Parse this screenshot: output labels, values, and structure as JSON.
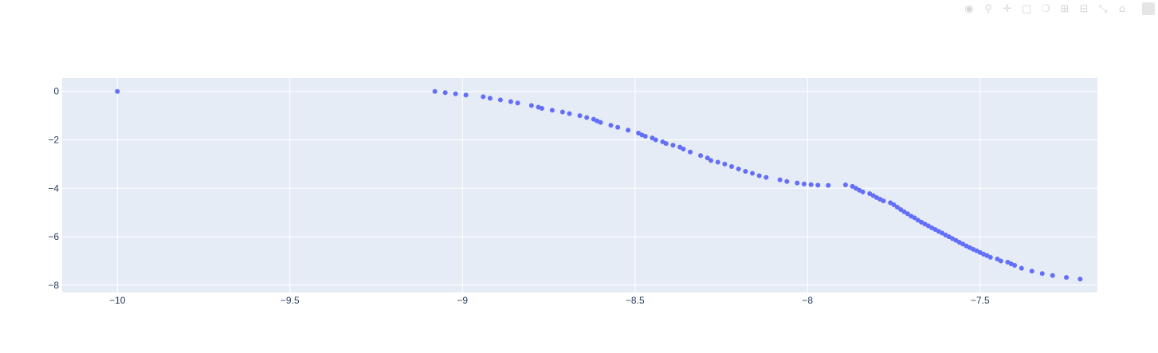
{
  "chart_data": {
    "type": "scatter",
    "title": "",
    "xlabel": "",
    "ylabel": "",
    "xlim": [
      -10.16,
      -7.16
    ],
    "ylim": [
      -8.3,
      0.55
    ],
    "xticks": [
      -10,
      -9.5,
      -9,
      -8.5,
      -8,
      -7.5
    ],
    "xtick_labels": [
      "−10",
      "−9.5",
      "−9",
      "−8.5",
      "−8",
      "−7.5"
    ],
    "yticks": [
      0,
      -2,
      -4,
      -6,
      -8
    ],
    "ytick_labels": [
      "0",
      "−2",
      "−4",
      "−6",
      "−8"
    ],
    "grid": true,
    "marker_color": "#636efa",
    "plot_bg": "#e5ecf6",
    "series": [
      {
        "x": [
          -10.0,
          -9.08,
          -9.05,
          -9.02,
          -8.99,
          -8.94,
          -8.92,
          -8.89,
          -8.86,
          -8.84,
          -8.8,
          -8.78,
          -8.77,
          -8.74,
          -8.71,
          -8.69,
          -8.66,
          -8.64,
          -8.62,
          -8.61,
          -8.6,
          -8.57,
          -8.55,
          -8.52,
          -8.49,
          -8.48,
          -8.47,
          -8.45,
          -8.44,
          -8.42,
          -8.41,
          -8.39,
          -8.37,
          -8.36,
          -8.34,
          -8.31,
          -8.29,
          -8.28,
          -8.26,
          -8.24,
          -8.22,
          -8.2,
          -8.18,
          -8.16,
          -8.14,
          -8.12,
          -8.08,
          -8.06,
          -8.03,
          -8.01,
          -7.99,
          -7.97,
          -7.94,
          -7.89,
          -7.87,
          -7.86,
          -7.85,
          -7.84,
          -7.82,
          -7.81,
          -7.8,
          -7.79,
          -7.78,
          -7.76,
          -7.75,
          -7.74,
          -7.73,
          -7.72,
          -7.71,
          -7.7,
          -7.69,
          -7.68,
          -7.67,
          -7.66,
          -7.65,
          -7.64,
          -7.63,
          -7.62,
          -7.61,
          -7.6,
          -7.59,
          -7.58,
          -7.57,
          -7.56,
          -7.55,
          -7.54,
          -7.53,
          -7.52,
          -7.51,
          -7.5,
          -7.49,
          -7.48,
          -7.47,
          -7.45,
          -7.44,
          -7.42,
          -7.41,
          -7.4,
          -7.38,
          -7.35,
          -7.32,
          -7.29,
          -7.25,
          -7.21
        ],
        "y": [
          0.0,
          0.0,
          -0.05,
          -0.1,
          -0.15,
          -0.22,
          -0.28,
          -0.35,
          -0.42,
          -0.48,
          -0.58,
          -0.65,
          -0.7,
          -0.78,
          -0.85,
          -0.92,
          -1.0,
          -1.08,
          -1.15,
          -1.22,
          -1.28,
          -1.4,
          -1.48,
          -1.6,
          -1.72,
          -1.8,
          -1.85,
          -1.92,
          -2.0,
          -2.08,
          -2.15,
          -2.22,
          -2.3,
          -2.38,
          -2.5,
          -2.65,
          -2.75,
          -2.85,
          -2.92,
          -3.0,
          -3.1,
          -3.2,
          -3.3,
          -3.38,
          -3.48,
          -3.55,
          -3.65,
          -3.72,
          -3.78,
          -3.82,
          -3.85,
          -3.87,
          -3.88,
          -3.86,
          -3.92,
          -4.0,
          -4.08,
          -4.15,
          -4.22,
          -4.3,
          -4.38,
          -4.45,
          -4.52,
          -4.6,
          -4.68,
          -4.78,
          -4.88,
          -4.97,
          -5.05,
          -5.15,
          -5.22,
          -5.32,
          -5.4,
          -5.48,
          -5.55,
          -5.63,
          -5.7,
          -5.78,
          -5.85,
          -5.93,
          -6.0,
          -6.08,
          -6.15,
          -6.23,
          -6.3,
          -6.38,
          -6.45,
          -6.52,
          -6.58,
          -6.65,
          -6.72,
          -6.78,
          -6.85,
          -6.92,
          -7.0,
          -7.05,
          -7.12,
          -7.18,
          -7.3,
          -7.42,
          -7.52,
          -7.6,
          -7.68,
          -7.75
        ]
      }
    ]
  },
  "modebar": {
    "buttons": [
      "camera-icon",
      "zoom-icon",
      "pan-icon",
      "box-select-icon",
      "lasso-icon",
      "zoom-in-icon",
      "zoom-out-icon",
      "autoscale-icon",
      "reset-axes-icon"
    ]
  }
}
